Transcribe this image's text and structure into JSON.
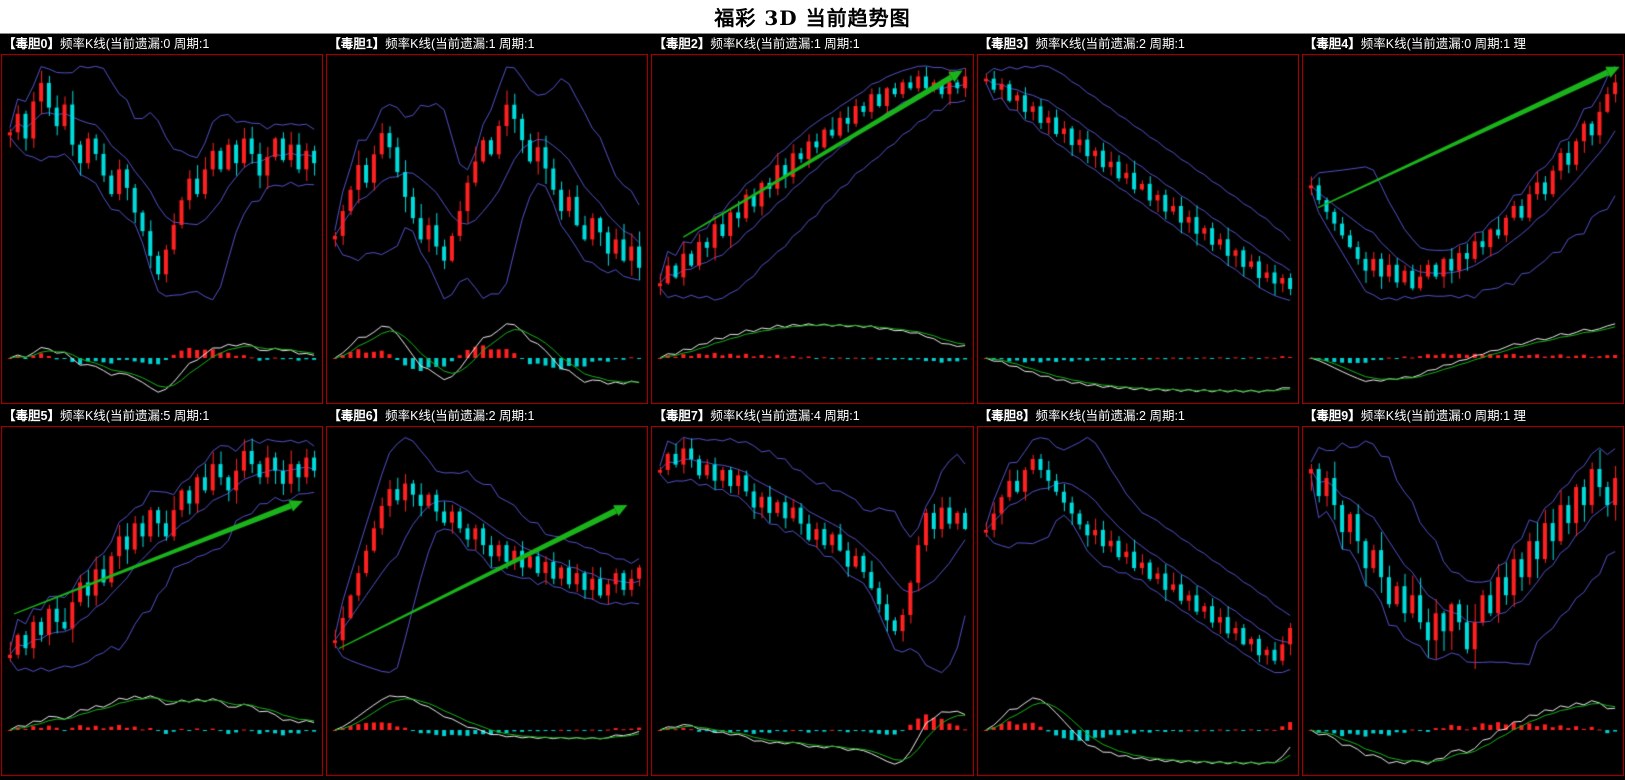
{
  "page": {
    "title": "福彩 3D 当前趋势图"
  },
  "colors": {
    "background": "#000000",
    "title_bg": "#ffffff",
    "title_text": "#000000",
    "panel_border": "#b40000",
    "header_text": "#ffffff",
    "candle_up": "#ff2020",
    "candle_down": "#00dcdc",
    "band": "#5050c8",
    "macd_line": "#e8e8e8",
    "macd_signal": "#16b216",
    "hist_up": "#ff2020",
    "hist_down": "#00d0d0",
    "arrow": "#1ab41a"
  },
  "chart_data": [
    {
      "type": "candlestick",
      "label": "【毒胆0】",
      "info": "频率K线(当前遗漏:0 周期:1",
      "miss": 0,
      "period": 1,
      "trend": "choppy-drop-recover",
      "overlays": [
        "bollinger-bands"
      ],
      "sub_indicator": "macd-histogram",
      "closes": [
        62,
        68,
        60,
        72,
        78,
        70,
        64,
        71,
        58,
        52,
        60,
        55,
        48,
        42,
        50,
        44,
        36,
        30,
        22,
        16,
        24,
        32,
        40,
        47,
        42,
        50,
        56,
        50,
        58,
        52,
        60,
        55,
        48,
        54,
        60,
        53,
        58,
        50,
        56,
        52
      ],
      "arrow": null
    },
    {
      "type": "candlestick",
      "label": "【毒胆1】",
      "info": "频率K线(当前遗漏:1 周期:1",
      "miss": 1,
      "period": 1,
      "trend": "wave-up-then-down",
      "overlays": [
        "bollinger-bands"
      ],
      "sub_indicator": "macd-histogram",
      "closes": [
        45,
        52,
        58,
        65,
        60,
        68,
        74,
        70,
        63,
        56,
        50,
        44,
        48,
        42,
        38,
        45,
        52,
        60,
        66,
        72,
        68,
        76,
        82,
        78,
        72,
        66,
        70,
        64,
        58,
        52,
        56,
        48,
        44,
        50,
        46,
        40,
        44,
        38,
        42,
        36
      ],
      "arrow": null
    },
    {
      "type": "candlestick",
      "label": "【毒胆2】",
      "info": "频率K线(当前遗漏:1 周期:1",
      "miss": 1,
      "period": 1,
      "trend": "strong-uptrend",
      "overlays": [
        "bollinger-bands"
      ],
      "sub_indicator": "macd-histogram",
      "closes": [
        18,
        24,
        20,
        28,
        24,
        32,
        30,
        38,
        34,
        42,
        40,
        48,
        44,
        52,
        50,
        58,
        54,
        62,
        60,
        66,
        64,
        70,
        68,
        74,
        72,
        78,
        76,
        82,
        78,
        84,
        82,
        86,
        84,
        88,
        84,
        86,
        82,
        86,
        84,
        88
      ],
      "arrow": {
        "from": [
          0.1,
          0.72
        ],
        "to": [
          0.93,
          0.07
        ]
      }
    },
    {
      "type": "candlestick",
      "label": "【毒胆3】",
      "info": "频率K线(当前遗漏:2 周期:1",
      "miss": 2,
      "period": 1,
      "trend": "downtrend",
      "overlays": [
        "bollinger-bands"
      ],
      "sub_indicator": "macd-histogram",
      "closes": [
        88,
        84,
        86,
        80,
        82,
        76,
        78,
        72,
        74,
        68,
        70,
        64,
        66,
        60,
        62,
        56,
        58,
        52,
        54,
        48,
        50,
        44,
        46,
        40,
        42,
        36,
        38,
        32,
        34,
        28,
        30,
        24,
        26,
        20,
        22,
        16,
        18,
        14,
        16,
        12
      ],
      "arrow": null
    },
    {
      "type": "candlestick",
      "label": "【毒胆4】",
      "info": "频率K线(当前遗漏:0 周期:1 理",
      "miss": 0,
      "period": 1,
      "trend": "dip-then-strong-rise",
      "overlays": [
        "bollinger-bands"
      ],
      "sub_indicator": "macd-histogram",
      "closes": [
        55,
        50,
        46,
        42,
        38,
        34,
        30,
        26,
        30,
        24,
        28,
        22,
        26,
        20,
        24,
        28,
        24,
        30,
        26,
        32,
        30,
        36,
        34,
        40,
        38,
        44,
        48,
        44,
        52,
        56,
        52,
        60,
        66,
        62,
        70,
        76,
        72,
        80,
        86,
        90
      ],
      "arrow": {
        "from": [
          0.05,
          0.6
        ],
        "to": [
          0.95,
          0.05
        ]
      }
    },
    {
      "type": "candlestick",
      "label": "【毒胆5】",
      "info": "频率K线(当前遗漏:5 周期:1",
      "miss": 5,
      "period": 1,
      "trend": "zigzag-uptrend",
      "overlays": [
        "bollinger-bands"
      ],
      "sub_indicator": "macd-histogram",
      "closes": [
        20,
        26,
        22,
        30,
        26,
        34,
        30,
        28,
        36,
        42,
        38,
        46,
        42,
        50,
        56,
        52,
        60,
        56,
        64,
        60,
        56,
        64,
        70,
        66,
        74,
        70,
        78,
        74,
        70,
        76,
        82,
        78,
        74,
        80,
        76,
        72,
        78,
        74,
        80,
        76
      ],
      "arrow": {
        "from": [
          0.04,
          0.74
        ],
        "to": [
          0.9,
          0.3
        ]
      }
    },
    {
      "type": "candlestick",
      "label": "【毒胆6】",
      "info": "频率K线(当前遗漏:2 周期:1",
      "miss": 2,
      "period": 1,
      "trend": "early-peak-slow-decline",
      "overlays": [
        "bollinger-bands"
      ],
      "sub_indicator": "macd-histogram",
      "closes": [
        28,
        36,
        44,
        52,
        60,
        68,
        76,
        82,
        78,
        84,
        80,
        76,
        80,
        74,
        70,
        74,
        68,
        64,
        68,
        62,
        58,
        62,
        56,
        60,
        54,
        58,
        52,
        56,
        50,
        54,
        48,
        52,
        46,
        50,
        44,
        48,
        52,
        46,
        50,
        54
      ],
      "arrow": {
        "from": [
          0.04,
          0.88
        ],
        "to": [
          0.9,
          0.32
        ]
      }
    },
    {
      "type": "candlestick",
      "label": "【毒胆7】",
      "info": "频率K线(当前遗漏:4 周期:1",
      "miss": 4,
      "period": 1,
      "trend": "decline-deep-trough-rebound",
      "overlays": [
        "bollinger-bands"
      ],
      "sub_indicator": "macd-histogram",
      "closes": [
        72,
        78,
        74,
        80,
        76,
        70,
        74,
        68,
        72,
        66,
        70,
        64,
        58,
        62,
        56,
        60,
        54,
        58,
        52,
        46,
        50,
        44,
        48,
        42,
        36,
        40,
        34,
        28,
        22,
        16,
        12,
        18,
        30,
        44,
        56,
        50,
        58,
        52,
        56,
        50
      ],
      "arrow": null
    },
    {
      "type": "candlestick",
      "label": "【毒胆8】",
      "info": "频率K线(当前遗漏:2 周期:1",
      "miss": 2,
      "period": 1,
      "trend": "peak-then-long-decline",
      "overlays": [
        "bollinger-bands"
      ],
      "sub_indicator": "macd-histogram",
      "closes": [
        62,
        68,
        74,
        80,
        76,
        84,
        88,
        84,
        80,
        76,
        72,
        68,
        64,
        60,
        62,
        56,
        58,
        52,
        54,
        48,
        50,
        44,
        46,
        40,
        42,
        36,
        38,
        32,
        34,
        28,
        30,
        24,
        26,
        20,
        22,
        16,
        18,
        14,
        20,
        26
      ],
      "arrow": null
    },
    {
      "type": "candlestick",
      "label": "【毒胆9】",
      "info": "频率K线(当前遗漏:0 周期:1 理",
      "miss": 0,
      "period": 1,
      "trend": "choppy-down-then-up",
      "overlays": [
        "bollinger-bands"
      ],
      "sub_indicator": "macd-histogram",
      "closes": [
        66,
        60,
        64,
        58,
        52,
        56,
        50,
        44,
        48,
        42,
        36,
        40,
        34,
        38,
        32,
        28,
        34,
        30,
        36,
        32,
        26,
        32,
        38,
        34,
        42,
        38,
        46,
        42,
        50,
        46,
        54,
        50,
        58,
        54,
        62,
        58,
        66,
        62,
        58,
        64
      ],
      "arrow": null
    }
  ]
}
